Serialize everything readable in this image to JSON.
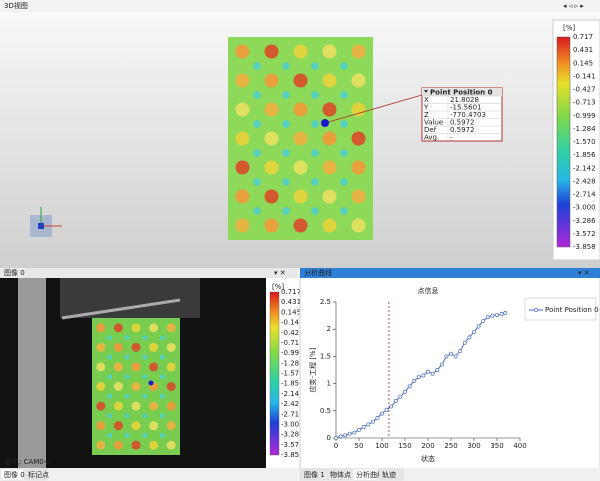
{
  "top_panel": {
    "title": "3D视图",
    "colorbar": {
      "unit": "[%]",
      "labels": [
        "0.717",
        "0.431",
        "0.145",
        "-0.141",
        "-0.427",
        "-0.713",
        "-0.999",
        "-1.284",
        "-1.570",
        "-1.856",
        "-2.142",
        "-2.428",
        "-2.714",
        "-3.000",
        "-3.286",
        "-3.572",
        "-3.858"
      ]
    },
    "point_popup": {
      "title": "Point Position 0",
      "rows": [
        [
          "X",
          "21.8028"
        ],
        [
          "Y",
          "-15.5601"
        ],
        [
          "Z",
          "-770.4703"
        ],
        [
          "Value",
          "0.5972"
        ],
        [
          "Def",
          "0.5972"
        ],
        [
          "Avg.",
          "-"
        ]
      ]
    }
  },
  "image_panel": {
    "title": "图像 0",
    "camera_label": "相机: CAM0-0",
    "tabs": [
      "图像 0",
      "标记点"
    ]
  },
  "curve_panel": {
    "title": "分析曲线",
    "tabs": [
      "图像 1",
      "物体点",
      "分析曲线",
      "轨迹"
    ]
  },
  "chart_data": {
    "type": "line",
    "title": "点信息",
    "x_label": "状态",
    "y_label": "应变-工程 [%]",
    "x": [
      0,
      10,
      20,
      30,
      40,
      50,
      60,
      70,
      80,
      90,
      100,
      110,
      120,
      130,
      140,
      150,
      160,
      170,
      180,
      190,
      200,
      210,
      220,
      230,
      240,
      250,
      260,
      270,
      280,
      290,
      300,
      310,
      320,
      330,
      340,
      350,
      360,
      368
    ],
    "series": [
      {
        "name": "Point Position 0",
        "color": "#4a6fc4",
        "values": [
          0,
          0.03,
          0.05,
          0.08,
          0.1,
          0.15,
          0.2,
          0.25,
          0.3,
          0.37,
          0.45,
          0.52,
          0.58,
          0.68,
          0.76,
          0.85,
          0.95,
          1.05,
          1.12,
          1.15,
          1.22,
          1.18,
          1.25,
          1.35,
          1.5,
          1.55,
          1.5,
          1.6,
          1.75,
          1.85,
          1.95,
          2.05,
          2.15,
          2.22,
          2.25,
          2.26,
          2.28,
          2.3
        ]
      }
    ],
    "xlim": [
      0,
      400
    ],
    "xticks": [
      0,
      50,
      100,
      150,
      200,
      250,
      300,
      350,
      400
    ],
    "ylim": [
      0,
      2.5
    ],
    "yticks": [
      0,
      0.5,
      1,
      1.5,
      2,
      2.5
    ],
    "marker_x": 115,
    "marker_color": "#c0392b",
    "grid": false
  }
}
